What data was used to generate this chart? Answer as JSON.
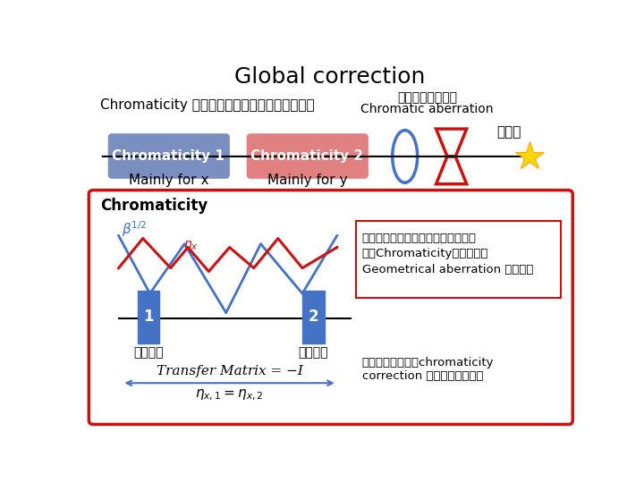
{
  "title": "Global correction",
  "subtitle": "Chromaticity のみを発生させる領域を別に作る",
  "top_right_line1": "最終収束４極磁石",
  "top_right_line2": "Chromatic aberration",
  "top_right_line3": "衝突点",
  "box1_text": "Chromaticity 1",
  "box1_sub": "Mainly for x",
  "box2_text": "Chromaticity 2",
  "box2_sub": "Mainly for y",
  "box1_color": "#7a8fc0",
  "box2_color": "#e08080",
  "bottom_box_title": "Chromaticity",
  "bottom_text1": "同じ強さの６極磁場を対称に置くこ",
  "bottom_text2": "とでChromaticity　を作り、",
  "bottom_text3": "Geometrical aberration は消える",
  "label1": "1",
  "label2": "2",
  "label_magnet1": "６極磁石",
  "label_magnet2": "６極磁石",
  "transfer_matrix": "Transfer Matrix = −I",
  "bottom_text4": "垂直、水平方向のchromaticity",
  "bottom_text5": "correction のため、２組必要",
  "bg_color": "#ffffff",
  "red_color": "#cc1111",
  "blue_color": "#4472c4"
}
